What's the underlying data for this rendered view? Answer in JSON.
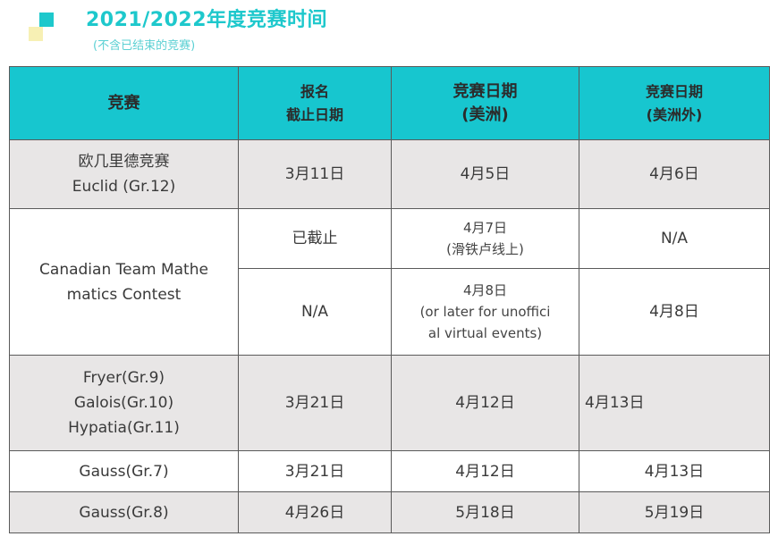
{
  "header": {
    "title": "2021/2022年度竞赛时间",
    "subtitle": "(不含已结束的竞赛)"
  },
  "table": {
    "columns": [
      {
        "lines": [
          "竞赛"
        ]
      },
      {
        "lines": [
          "报名",
          "截止日期"
        ]
      },
      {
        "lines": [
          "竞赛日期",
          "(美洲)"
        ]
      },
      {
        "lines": [
          "竞赛日期",
          "(美洲外)"
        ]
      }
    ],
    "rows": {
      "euclid": {
        "name": [
          "欧几里德竞赛",
          "Euclid (Gr.12)"
        ],
        "deadline": "3月11日",
        "americas": "4月5日",
        "outside": "4月6日"
      },
      "ctmc": {
        "name": [
          "Canadian Team Mathe",
          "matics Contest"
        ],
        "sub1": {
          "deadline": "已截止",
          "americas": [
            "4月7日",
            "(滑铁卢线上)"
          ],
          "outside": "N/A"
        },
        "sub2": {
          "deadline": "N/A",
          "americas": [
            "4月8日",
            "(or later for unoffici",
            "al virtual events)"
          ],
          "outside": "4月8日"
        }
      },
      "fgh": {
        "name": [
          "Fryer(Gr.9)",
          "Galois(Gr.10)",
          "Hypatia(Gr.11)"
        ],
        "deadline": "3月21日",
        "americas": "4月12日",
        "outside": "4月13日"
      },
      "gauss7": {
        "name": "Gauss(Gr.7)",
        "deadline": "3月21日",
        "americas": "4月12日",
        "outside": "4月13日"
      },
      "gauss8": {
        "name": "Gauss(Gr.8)",
        "deadline": "4月26日",
        "americas": "5月18日",
        "outside": "5月19日"
      }
    }
  },
  "colors": {
    "accent": "#1ec8cc",
    "header_bg": "#17c6cf",
    "row_gray": "#e8e6e6",
    "deco_yellow": "#f7f0b4"
  }
}
